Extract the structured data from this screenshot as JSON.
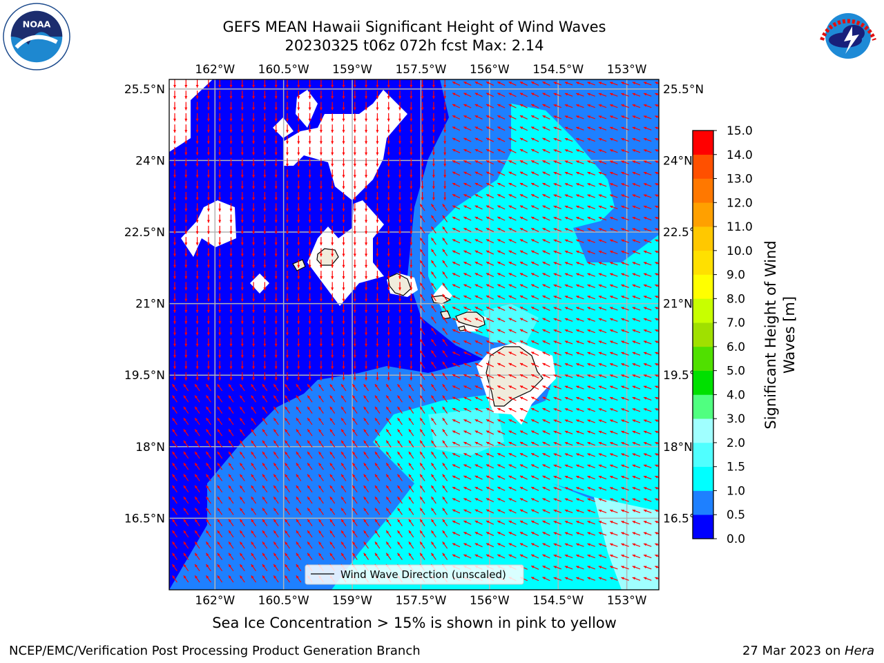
{
  "title_line1": "GEFS MEAN Hawaii Significant Height of Wind Waves",
  "title_line2": "20230325 t06z 072h fcst   Max: 2.14",
  "note": "Sea Ice Concentration > 15% is shown in pink to yellow",
  "footer_left": "NCEP/EMC/Verification Post Processing Product Generation Branch",
  "footer_date": "27 Mar 2023 on ",
  "footer_host": "Hera",
  "logos": {
    "noaa_text": "NOAA",
    "noaa_ring": "NATIONAL OCEANIC AND ATMOSPHERIC ADMINISTRATION · U.S. DEPARTMENT OF COMMERCE",
    "nws_ring": "NATIONAL WEATHER SERVICE"
  },
  "chart_data": {
    "type": "heatmap",
    "variable": "Significant Height of Wind Waves",
    "units": "m",
    "max_value": 2.14,
    "lon_ticks": [
      -162,
      -160.5,
      -159,
      -157.5,
      -156,
      -154.5,
      -153
    ],
    "lon_labels": [
      "162°W",
      "160.5°W",
      "159°W",
      "157.5°W",
      "156°W",
      "154.5°W",
      "153°W"
    ],
    "lat_ticks": [
      25.5,
      24,
      22.5,
      21,
      19.5,
      18,
      16.5
    ],
    "lat_labels": [
      "25.5°N",
      "24°N",
      "22.5°N",
      "21°N",
      "19.5°N",
      "18°N",
      "16.5°N"
    ],
    "lon_range": [
      -163.0,
      -152.3
    ],
    "lat_range": [
      15.0,
      25.7
    ],
    "grid": true,
    "legend_label": "Wind Wave Direction (unscaled)",
    "legend_placement": "bottom-center",
    "wave_direction": "toward southwest (north of islands: toward south)",
    "colorbar": {
      "label": "Significant Height of Wind Waves [m]",
      "levels": [
        0.0,
        0.5,
        1.0,
        1.5,
        2.0,
        3.0,
        4.0,
        5.0,
        6.0,
        7.0,
        8.0,
        9.0,
        10.0,
        11.0,
        12.0,
        13.0,
        14.0,
        15.0
      ],
      "tick_labels": [
        "0.0",
        "0.5",
        "1.0",
        "1.5",
        "2.0",
        "3.0",
        "4.0",
        "5.0",
        "6.0",
        "7.0",
        "8.0",
        "9.0",
        "10.0",
        "11.0",
        "12.0",
        "13.0",
        "14.0",
        "15.0"
      ],
      "colors": [
        "#0000ff",
        "#1e80ff",
        "#00ffff",
        "#50ffff",
        "#a0ffff",
        "#50ff80",
        "#00e000",
        "#50e000",
        "#a0e000",
        "#c8ff00",
        "#ffff00",
        "#ffe000",
        "#ffc800",
        "#ffa000",
        "#ff7800",
        "#ff5000",
        "#ff0000"
      ]
    },
    "colors": {
      "land": "#f0ecdc",
      "coast": "#000000",
      "arrow": "#ff0000",
      "grid": "#b4b4b4",
      "no_data": "#ffffff"
    }
  }
}
